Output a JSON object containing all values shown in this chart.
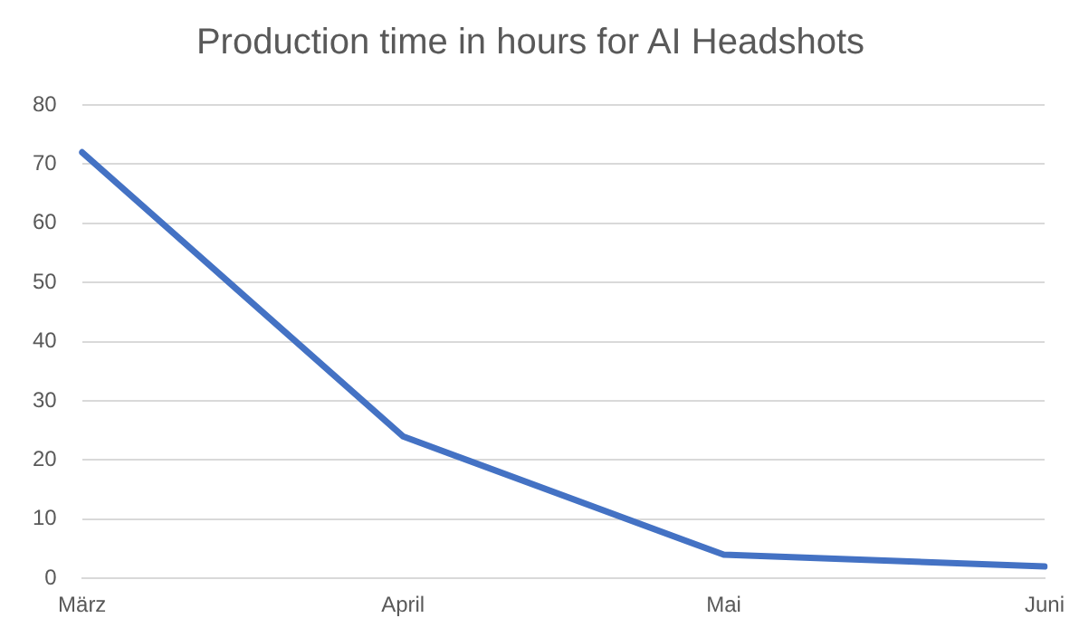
{
  "chart_data": {
    "type": "line",
    "title": "Production time in hours for AI Headshots",
    "categories": [
      "März",
      "April",
      "Mai",
      "Juni"
    ],
    "series": [
      {
        "color": "#4472c4",
        "values": [
          72,
          24,
          4,
          2
        ]
      }
    ],
    "ylim": [
      0,
      80
    ],
    "yticks": [
      0,
      10,
      20,
      30,
      40,
      50,
      60,
      70,
      80
    ],
    "grid": "y",
    "legend": false,
    "marker": "none",
    "line_style": "solid"
  }
}
